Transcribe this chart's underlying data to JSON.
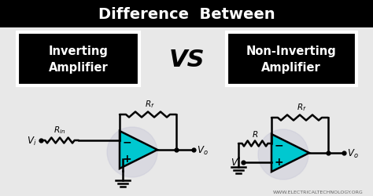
{
  "title": "Difference  Between",
  "title_color": "#ffffff",
  "title_bg_color": "#000000",
  "bg_color": "#e8e8e8",
  "box1_text": "Inverting\nAmplifier",
  "box2_text": "Non-Inverting\nAmplifier",
  "vs_text": "VS",
  "box_bg": "#000000",
  "box_text_color": "#ffffff",
  "vs_color": "#000000",
  "watermark": "WWW.ELECTRICALTECHNOLOGY.ORG",
  "amp_fill": "#00c8d0",
  "wire_color": "#000000",
  "label_color": "#000000",
  "fig_w": 4.74,
  "fig_h": 2.51,
  "dpi": 100
}
